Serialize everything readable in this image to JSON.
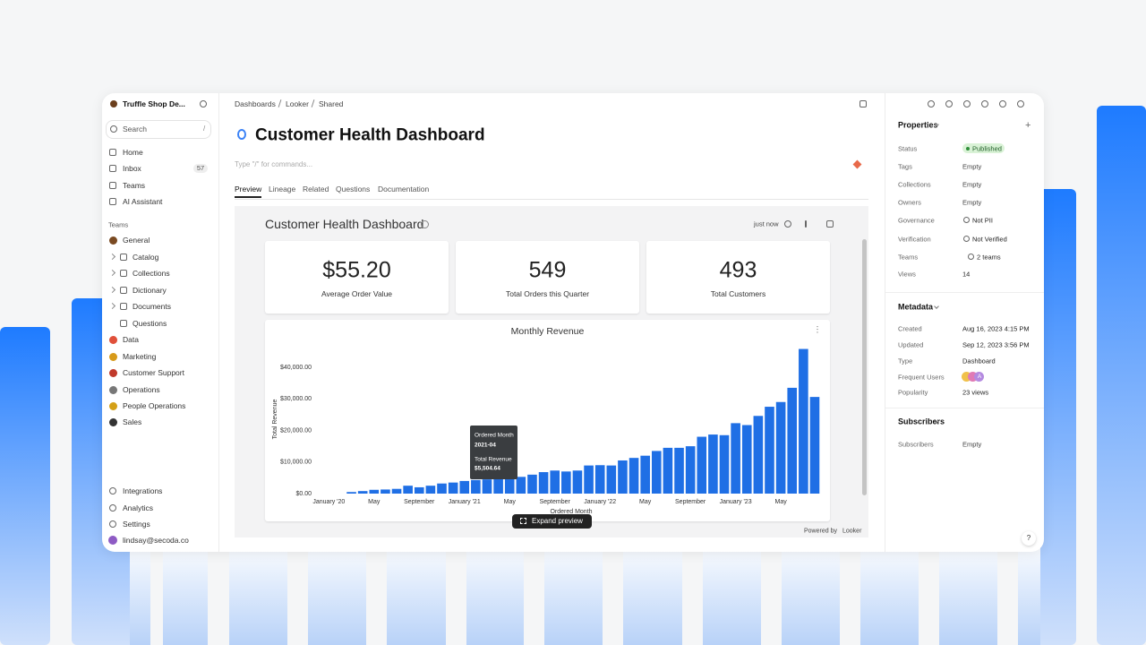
{
  "sidebar": {
    "workspace": "Truffle Shop De...",
    "search": "Search",
    "search_key": "/",
    "nav": [
      "Home",
      "Inbox",
      "Teams",
      "AI Assistant"
    ],
    "inbox_count": "57",
    "teams_heading": "Teams",
    "teams": [
      "General",
      "Catalog",
      "Collections",
      "Dictionary",
      "Documents",
      "Questions",
      "Data",
      "Marketing",
      "Customer Support",
      "Operations",
      "People Operations",
      "Sales"
    ],
    "footer": [
      "Integrations",
      "Analytics",
      "Settings"
    ],
    "user": "lindsay@secoda.co"
  },
  "breadcrumb": [
    "Dashboards",
    "Looker",
    "Shared"
  ],
  "page": {
    "title": "Customer Health Dashboard",
    "placeholder": "Type \"/\" for commands...",
    "tabs": [
      "Preview",
      "Lineage",
      "Related",
      "Questions",
      "Documentation"
    ]
  },
  "embed": {
    "title": "Customer Health Dashboard",
    "refreshed": "just now",
    "kpis": [
      {
        "value": "$55.20",
        "label": "Average Order Value"
      },
      {
        "value": "549",
        "label": "Total Orders this Quarter"
      },
      {
        "value": "493",
        "label": "Total Customers"
      }
    ],
    "expand": "Expand preview",
    "powered_by": "Powered by",
    "brand": "Looker"
  },
  "chart_data": {
    "type": "bar",
    "title": "Monthly Revenue",
    "x_label": "Ordered Month",
    "y_label": "Total Revenue",
    "color": "#1f6fe5",
    "categories": [
      "January '20",
      null,
      null,
      null,
      "May",
      null,
      null,
      null,
      "September",
      null,
      null,
      null,
      "January '21",
      null,
      null,
      null,
      "May",
      null,
      null,
      null,
      "September",
      null,
      null,
      null,
      "January '22",
      null,
      null,
      null,
      "May",
      null,
      null,
      null,
      "September",
      null,
      null,
      null,
      "January '23",
      null,
      null,
      null,
      "May",
      null,
      null,
      null
    ],
    "values": [
      0,
      0,
      500,
      800,
      1200,
      1300,
      1500,
      2500,
      2000,
      2500,
      3200,
      3500,
      4000,
      4300,
      4500,
      5504.64,
      5000,
      5300,
      6000,
      6800,
      7300,
      7000,
      7300,
      8900,
      9000,
      8900,
      10500,
      11300,
      12000,
      13500,
      14500,
      14500,
      15000,
      18000,
      18700,
      18500,
      22300,
      21700,
      24600,
      27500,
      29000,
      33500,
      45800,
      30600
    ],
    "ylim": [
      0,
      47000
    ],
    "yticks": [
      {
        "value": 0,
        "label": "$0.00"
      },
      {
        "value": 10000,
        "label": "$10,000.00"
      },
      {
        "value": 20000,
        "label": "$20,000.00"
      },
      {
        "value": 30000,
        "label": "$30,000.00"
      },
      {
        "value": 40000,
        "label": "$40,000.00"
      }
    ],
    "grid": false,
    "tooltip": {
      "title": "Ordered Month",
      "category": "2021-04",
      "label": "Total Revenue",
      "value_label": "$5,504.64"
    }
  },
  "properties": {
    "heading": "Properties",
    "rows": [
      {
        "label": "Status",
        "value": "Published"
      },
      {
        "label": "Tags",
        "value": "Empty"
      },
      {
        "label": "Collections",
        "value": "Empty"
      },
      {
        "label": "Owners",
        "value": "Empty"
      },
      {
        "label": "Governance",
        "value": "Not PII"
      },
      {
        "label": "Verification",
        "value": "Not Verified"
      },
      {
        "label": "Teams",
        "value": "2 teams"
      },
      {
        "label": "Views",
        "value": "14"
      }
    ]
  },
  "metadata": {
    "heading": "Metadata",
    "rows": [
      {
        "label": "Created",
        "value": "Aug 16, 2023 4:15 PM"
      },
      {
        "label": "Updated",
        "value": "Sep 12, 2023 3:56 PM"
      },
      {
        "label": "Type",
        "value": "Dashboard"
      },
      {
        "label": "Frequent Users",
        "value": "A"
      },
      {
        "label": "Popularity",
        "value": "23 views"
      }
    ]
  },
  "subscribers": {
    "heading": "Subscribers",
    "rows": [
      {
        "label": "Subscribers",
        "value": "Empty"
      }
    ]
  },
  "help": "?"
}
